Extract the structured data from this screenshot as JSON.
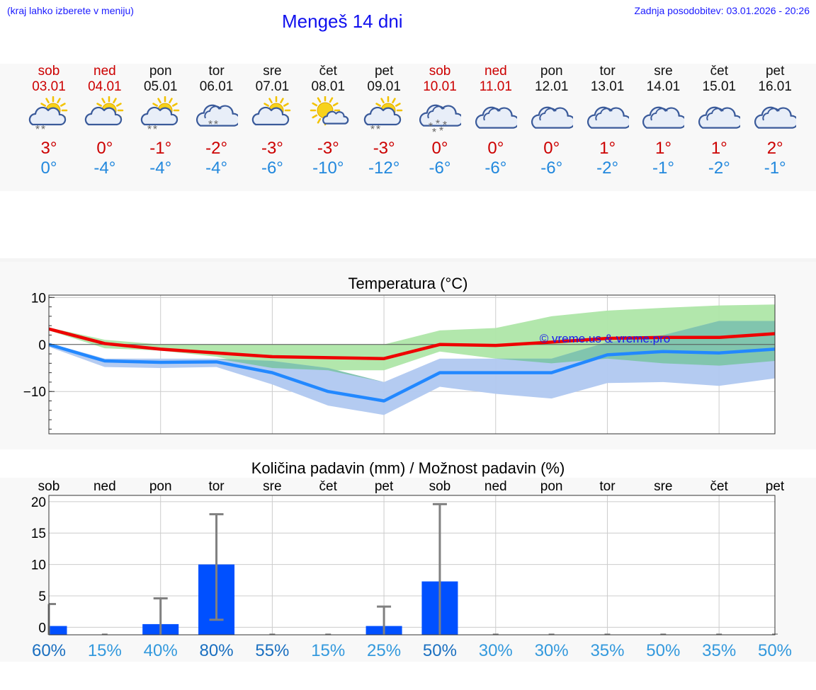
{
  "header": {
    "location_hint": "(kraj lahko izberete v meniju)",
    "title": "Mengeš 14 dni",
    "updated": "Zadnja posodobitev: 03.01.2026 - 20:26"
  },
  "colors": {
    "weekend": "#cc0000",
    "weekday": "#111111",
    "max": "#cc0000",
    "min": "#2288dd",
    "bar": "#0050ff"
  },
  "days": [
    {
      "name": "sob",
      "date": "03.01",
      "weekend": true,
      "icon": "sun-cloud-snow-icon",
      "tmax": "3°",
      "tmin": "0°"
    },
    {
      "name": "ned",
      "date": "04.01",
      "weekend": true,
      "icon": "sun-cloud-icon",
      "tmax": "0°",
      "tmin": "-4°"
    },
    {
      "name": "pon",
      "date": "05.01",
      "weekend": false,
      "icon": "sun-cloud-snow-icon",
      "tmax": "-1°",
      "tmin": "-4°"
    },
    {
      "name": "tor",
      "date": "06.01",
      "weekend": false,
      "icon": "cloud-snow-icon",
      "tmax": "-2°",
      "tmin": "-4°"
    },
    {
      "name": "sre",
      "date": "07.01",
      "weekend": false,
      "icon": "sun-cloud-icon",
      "tmax": "-3°",
      "tmin": "-6°"
    },
    {
      "name": "čet",
      "date": "08.01",
      "weekend": false,
      "icon": "sun-small-cloud-icon",
      "tmax": "-3°",
      "tmin": "-10°"
    },
    {
      "name": "pet",
      "date": "09.01",
      "weekend": false,
      "icon": "sun-cloud-snow-icon",
      "tmax": "-3°",
      "tmin": "-12°"
    },
    {
      "name": "sob",
      "date": "10.01",
      "weekend": true,
      "icon": "cloud-heavy-snow-icon",
      "tmax": "0°",
      "tmin": "-6°"
    },
    {
      "name": "ned",
      "date": "11.01",
      "weekend": true,
      "icon": "cloud-icon",
      "tmax": "0°",
      "tmin": "-6°"
    },
    {
      "name": "pon",
      "date": "12.01",
      "weekend": false,
      "icon": "cloud-icon",
      "tmax": "0°",
      "tmin": "-6°"
    },
    {
      "name": "tor",
      "date": "13.01",
      "weekend": false,
      "icon": "cloud-icon",
      "tmax": "1°",
      "tmin": "-2°"
    },
    {
      "name": "sre",
      "date": "14.01",
      "weekend": false,
      "icon": "cloud-icon",
      "tmax": "1°",
      "tmin": "-1°"
    },
    {
      "name": "čet",
      "date": "15.01",
      "weekend": false,
      "icon": "cloud-icon",
      "tmax": "1°",
      "tmin": "-2°"
    },
    {
      "name": "pet",
      "date": "16.01",
      "weekend": false,
      "icon": "cloud-icon",
      "tmax": "2°",
      "tmin": "-1°"
    }
  ],
  "chart_data": [
    {
      "type": "line",
      "title": "Temperatura (°C)",
      "watermark": "© vreme.us & vreme.pro",
      "ylim": [
        -19,
        10.5
      ],
      "yticks": [
        10,
        0,
        -10
      ],
      "ytick_labels": [
        "10",
        "0",
        "−10"
      ],
      "x": [
        0,
        1,
        2,
        3,
        4,
        5,
        6,
        7,
        8,
        9,
        10,
        11,
        12,
        13
      ],
      "series": [
        {
          "name": "max",
          "color": "#ee0000",
          "values": [
            3.3,
            0.2,
            -1.0,
            -1.8,
            -2.6,
            -2.8,
            -3.0,
            0.0,
            -0.2,
            0.5,
            1.3,
            1.5,
            1.5,
            2.3
          ]
        },
        {
          "name": "min",
          "color": "#2288ff",
          "values": [
            0,
            -3.5,
            -3.8,
            -3.7,
            -6.0,
            -10.0,
            -12.0,
            -6.0,
            -6.0,
            -6.0,
            -2.2,
            -1.5,
            -1.8,
            -1.0
          ]
        }
      ],
      "bands": [
        {
          "name": "max-range",
          "color": "#aee6a8",
          "low": [
            3.0,
            -0.8,
            -1.3,
            -2.6,
            -5.0,
            -5.5,
            -5.5,
            -1.5,
            -3.0,
            -4.0,
            -3.0,
            -4.0,
            -4.5,
            -3.5
          ],
          "high": [
            3.6,
            1.0,
            0.0,
            0.0,
            0.0,
            0.0,
            0.0,
            3.0,
            3.5,
            6.0,
            7.2,
            7.8,
            8.3,
            8.5
          ]
        },
        {
          "name": "min-range",
          "color": "#b0c8f0",
          "low": [
            -0.5,
            -4.8,
            -5.0,
            -4.8,
            -8.5,
            -13.0,
            -15.0,
            -9.0,
            -10.5,
            -11.5,
            -8.2,
            -8.0,
            -8.8,
            -7.2
          ],
          "high": [
            0.3,
            -3.0,
            -3.0,
            -3.0,
            -3.5,
            -5.0,
            -8.0,
            -3.0,
            -3.0,
            -3.0,
            0.5,
            2.0,
            5.0,
            5.0
          ]
        }
      ]
    },
    {
      "type": "bar",
      "title": "Količina padavin (mm) / Možnost padavin (%)",
      "categories": [
        "sob",
        "ned",
        "pon",
        "tor",
        "sre",
        "čet",
        "pet",
        "sob",
        "ned",
        "pon",
        "tor",
        "sre",
        "čet",
        "pet"
      ],
      "values": [
        0.2,
        0,
        0.5,
        10.0,
        0,
        0,
        0.2,
        7.3,
        0,
        0,
        0,
        0,
        0,
        0
      ],
      "error_high": [
        3.7,
        0,
        4.6,
        18.0,
        0,
        0,
        3.3,
        19.6,
        0,
        0,
        0,
        0,
        0,
        0
      ],
      "error_low": [
        0,
        0,
        0,
        1.2,
        0,
        0,
        0,
        0,
        0,
        0,
        0,
        0,
        0,
        0
      ],
      "ylim": [
        -1.2,
        21
      ],
      "yticks": [
        20,
        15,
        10,
        5,
        0
      ],
      "probability": [
        "60%",
        "15%",
        "40%",
        "80%",
        "55%",
        "15%",
        "25%",
        "50%",
        "30%",
        "30%",
        "35%",
        "50%",
        "35%",
        "50%"
      ],
      "probability_colors": [
        "#1a6fc0",
        "#3399dd",
        "#3399dd",
        "#1a6fc0",
        "#1a6fc0",
        "#3399dd",
        "#3399dd",
        "#1a6fc0",
        "#3399dd",
        "#3399dd",
        "#3399dd",
        "#3399dd",
        "#3399dd",
        "#3399dd"
      ]
    }
  ]
}
